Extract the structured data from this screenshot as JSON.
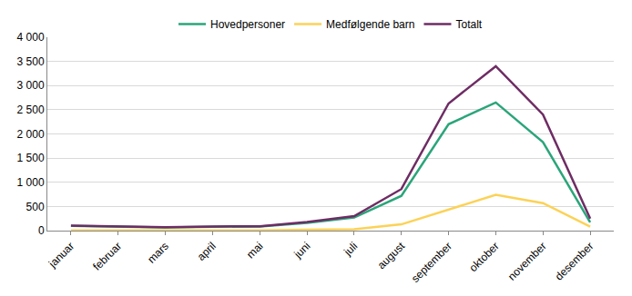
{
  "chart_data": {
    "type": "line",
    "categories": [
      "januar",
      "februar",
      "mars",
      "april",
      "mai",
      "juni",
      "juli",
      "august",
      "september",
      "oktober",
      "november",
      "desember"
    ],
    "series": [
      {
        "name": "Hovedpersoner",
        "color": "#2ba57a",
        "values": [
          100,
          80,
          65,
          80,
          85,
          160,
          270,
          720,
          2200,
          2650,
          1830,
          170
        ]
      },
      {
        "name": "Medfølgende barn",
        "color": "#fcd256",
        "values": [
          5,
          5,
          5,
          5,
          5,
          20,
          30,
          130,
          440,
          740,
          570,
          80
        ]
      },
      {
        "name": "Totalt",
        "color": "#6e2c64",
        "values": [
          105,
          85,
          70,
          85,
          90,
          180,
          300,
          860,
          2630,
          3400,
          2400,
          250
        ]
      }
    ],
    "ylim": [
      0,
      4000
    ],
    "yticks": [
      0,
      500,
      {
        "value": 1000,
        "label": "1 000"
      },
      {
        "value": 1500,
        "label": "1 500"
      },
      {
        "value": 2000,
        "label": "2 000"
      },
      {
        "value": 2500,
        "label": "2 500"
      },
      {
        "value": 3000,
        "label": "3 000"
      },
      {
        "value": 3500,
        "label": "3 500"
      },
      {
        "value": 4000,
        "label": "4 000"
      }
    ],
    "grid": true,
    "legend": "top"
  }
}
